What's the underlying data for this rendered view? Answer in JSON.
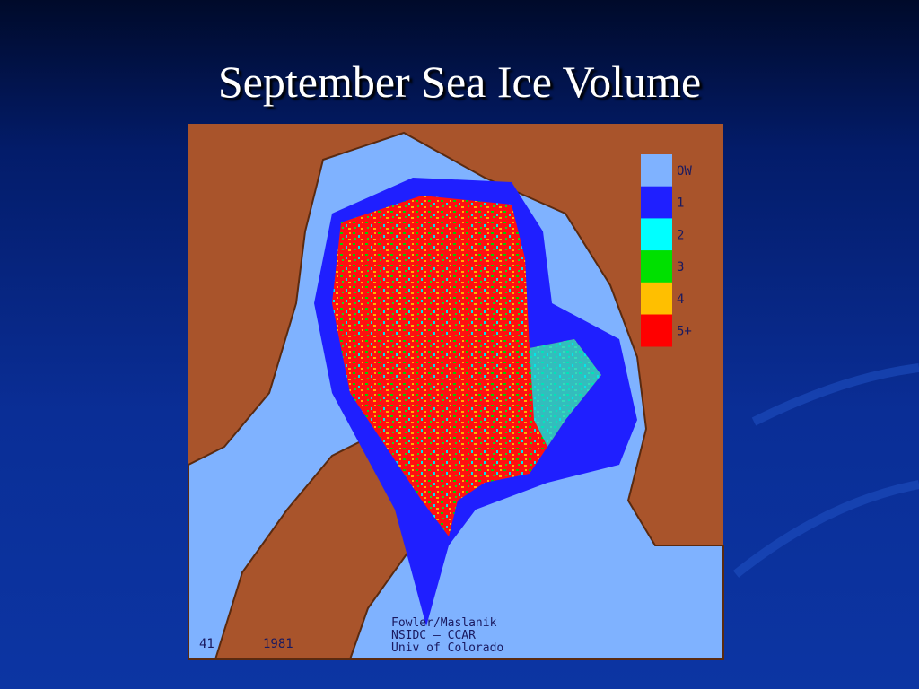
{
  "slide": {
    "title": "September Sea Ice Volume"
  },
  "map": {
    "legend": [
      {
        "label": "OW",
        "color": "#7fb2ff"
      },
      {
        "label": "1",
        "color": "#1f1fff"
      },
      {
        "label": "2",
        "color": "#00ffff"
      },
      {
        "label": "3",
        "color": "#00e000"
      },
      {
        "label": "4",
        "color": "#ffbf00"
      },
      {
        "label": "5+",
        "color": "#ff0000"
      }
    ],
    "frame": "41",
    "year": "1981",
    "credits": [
      "Fowler/Maslanik",
      "NSIDC – CCAR",
      "Univ of Colorado"
    ]
  }
}
